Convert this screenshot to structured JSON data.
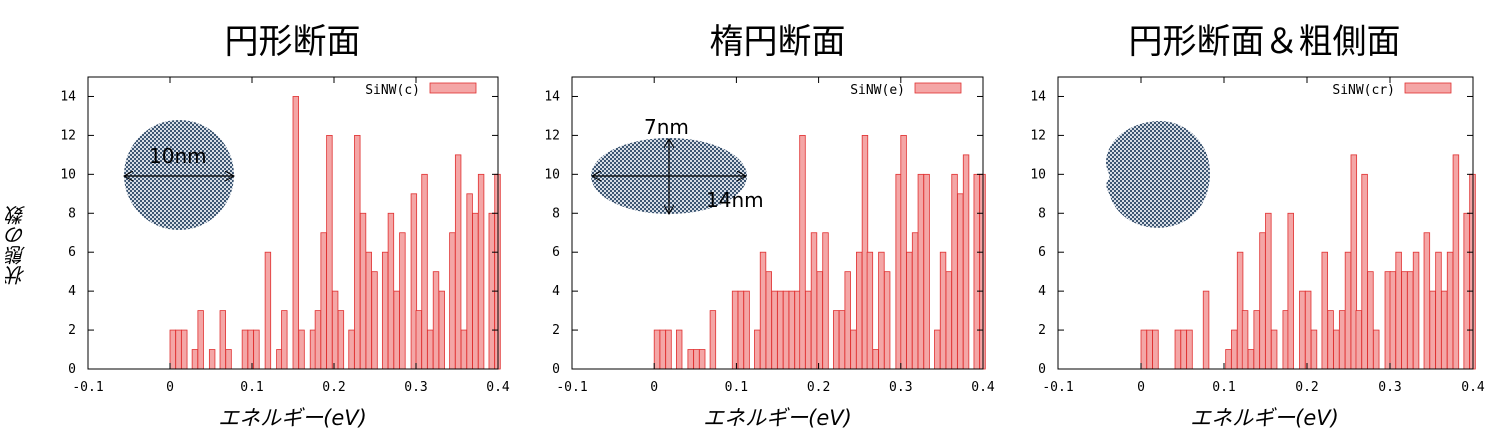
{
  "chart_data": [
    {
      "type": "bar",
      "title": "円形断面",
      "xlabel": "エネルギー(eV)",
      "ylabel": "状態の数",
      "xlim": [
        -0.1,
        0.4
      ],
      "ylim": [
        0,
        15
      ],
      "xticks": [
        "-0.1",
        "0",
        "0.1",
        "0.2",
        "0.3",
        "0.4"
      ],
      "yticks": [
        "0",
        "2",
        "4",
        "6",
        "8",
        "10",
        "12",
        "14"
      ],
      "legend": "top-right",
      "bar_color": "#f4a6a6",
      "edge_color": "#e03030",
      "series": [
        {
          "name": "SiNW(c)",
          "x": [
            0.0,
            0.007,
            0.014,
            0.027,
            0.034,
            0.048,
            0.061,
            0.068,
            0.088,
            0.095,
            0.102,
            0.116,
            0.13,
            0.136,
            0.15,
            0.157,
            0.171,
            0.177,
            0.184,
            0.191,
            0.198,
            0.205,
            0.218,
            0.225,
            0.232,
            0.239,
            0.246,
            0.259,
            0.266,
            0.273,
            0.28,
            0.294,
            0.3,
            0.307,
            0.314,
            0.321,
            0.328,
            0.341,
            0.348,
            0.355,
            0.362,
            0.369,
            0.376,
            0.389,
            0.396
          ],
          "values": [
            2,
            2,
            2,
            1,
            3,
            1,
            3,
            1,
            2,
            2,
            2,
            6,
            1,
            3,
            14,
            2,
            2,
            3,
            7,
            12,
            4,
            3,
            2,
            12,
            8,
            6,
            5,
            6,
            8,
            4,
            7,
            9,
            3,
            10,
            2,
            5,
            4,
            7,
            11,
            2,
            9,
            8,
            10,
            8,
            10
          ]
        }
      ],
      "annotations": [
        "10nm"
      ]
    },
    {
      "type": "bar",
      "title": "楕円断面",
      "xlabel": "エネルギー(eV)",
      "xlim": [
        -0.1,
        0.4
      ],
      "ylim": [
        0,
        15
      ],
      "xticks": [
        "-0.1",
        "0",
        "0.1",
        "0.2",
        "0.3",
        "0.4"
      ],
      "yticks": [
        "0",
        "2",
        "4",
        "6",
        "8",
        "10",
        "12",
        "14"
      ],
      "legend": "top-right",
      "bar_color": "#f4a6a6",
      "edge_color": "#e03030",
      "series": [
        {
          "name": "SiNW(e)",
          "x": [
            0.0,
            0.007,
            0.014,
            0.027,
            0.041,
            0.048,
            0.055,
            0.068,
            0.095,
            0.102,
            0.109,
            0.122,
            0.129,
            0.136,
            0.143,
            0.15,
            0.157,
            0.164,
            0.171,
            0.177,
            0.184,
            0.191,
            0.198,
            0.205,
            0.218,
            0.225,
            0.232,
            0.239,
            0.246,
            0.253,
            0.259,
            0.266,
            0.273,
            0.28,
            0.294,
            0.3,
            0.307,
            0.314,
            0.321,
            0.328,
            0.341,
            0.348,
            0.355,
            0.362,
            0.369,
            0.376,
            0.389,
            0.396
          ],
          "values": [
            2,
            2,
            2,
            2,
            1,
            1,
            1,
            3,
            4,
            4,
            4,
            2,
            6,
            5,
            4,
            4,
            4,
            4,
            4,
            12,
            4,
            7,
            5,
            7,
            3,
            3,
            5,
            2,
            6,
            12,
            6,
            1,
            6,
            5,
            10,
            12,
            6,
            7,
            10,
            10,
            2,
            6,
            5,
            10,
            9,
            11,
            10,
            10
          ]
        }
      ],
      "annotations": [
        "7nm",
        "14nm"
      ]
    },
    {
      "type": "bar",
      "title": "円形断面＆粗側面",
      "xlabel": "エネルギー(eV)",
      "xlim": [
        -0.1,
        0.4
      ],
      "ylim": [
        0,
        15
      ],
      "xticks": [
        "-0.1",
        "0",
        "0.1",
        "0.2",
        "0.3",
        "0.4"
      ],
      "yticks": [
        "0",
        "2",
        "4",
        "6",
        "8",
        "10",
        "12",
        "14"
      ],
      "legend": "top-right",
      "bar_color": "#f4a6a6",
      "edge_color": "#e03030",
      "series": [
        {
          "name": "SiNW(cr)",
          "x": [
            0.0,
            0.007,
            0.014,
            0.041,
            0.048,
            0.055,
            0.075,
            0.102,
            0.109,
            0.116,
            0.122,
            0.129,
            0.136,
            0.143,
            0.15,
            0.157,
            0.171,
            0.177,
            0.191,
            0.198,
            0.205,
            0.218,
            0.225,
            0.232,
            0.239,
            0.246,
            0.253,
            0.259,
            0.266,
            0.273,
            0.28,
            0.294,
            0.3,
            0.307,
            0.314,
            0.321,
            0.328,
            0.341,
            0.348,
            0.355,
            0.362,
            0.369,
            0.376,
            0.389,
            0.396
          ],
          "values": [
            2,
            2,
            2,
            2,
            2,
            2,
            4,
            1,
            2,
            6,
            3,
            1,
            3,
            7,
            8,
            2,
            3,
            8,
            4,
            4,
            2,
            6,
            3,
            2,
            3,
            6,
            11,
            3,
            10,
            5,
            2,
            5,
            5,
            6,
            5,
            5,
            6,
            7,
            4,
            6,
            4,
            6,
            11,
            8,
            10
          ]
        }
      ]
    }
  ]
}
